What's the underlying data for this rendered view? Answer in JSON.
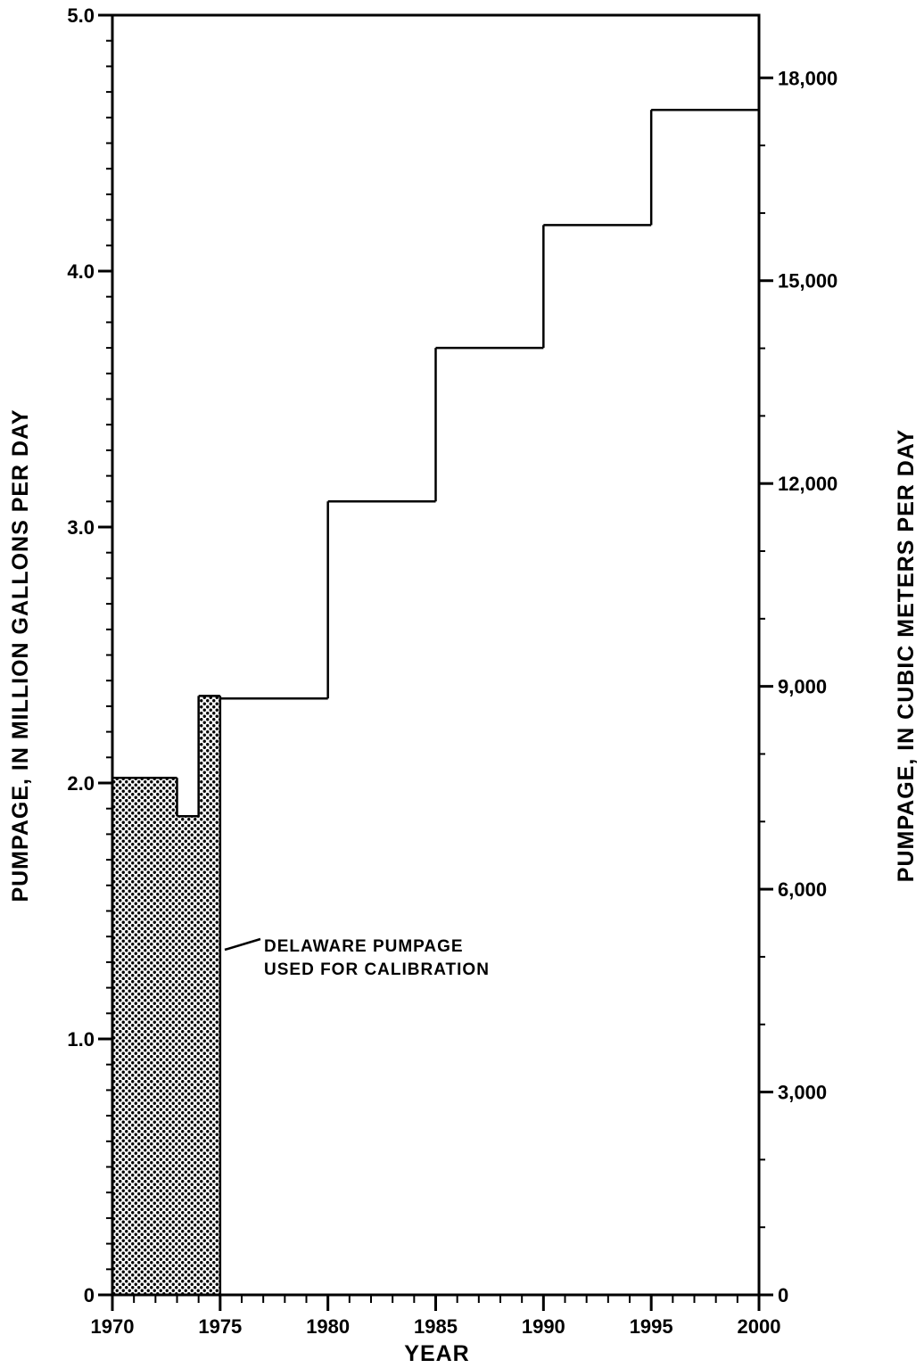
{
  "chart_data": {
    "type": "line",
    "step": true,
    "xlabel": "YEAR",
    "ylabel": "PUMPAGE, IN MILLION GALLONS PER DAY",
    "ylabel_right": "PUMPAGE, IN CUBIC METERS PER DAY",
    "xlim": [
      1970,
      2000
    ],
    "ylim": [
      0,
      5.0
    ],
    "ylim_right": [
      0,
      18927
    ],
    "x_ticks": [
      "1970",
      "1975",
      "1980",
      "1985",
      "1990",
      "1995",
      "2000"
    ],
    "y_ticks": [
      "0",
      "1.0",
      "2.0",
      "3.0",
      "4.0",
      "5.0"
    ],
    "y_right_ticks": [
      "0",
      "3,000",
      "6,000",
      "9,000",
      "12,000",
      "15,000",
      "18,000"
    ],
    "series": [
      {
        "segments": [
          {
            "x0": 1970,
            "x1": 1973,
            "y": 2.02
          },
          {
            "x0": 1973,
            "x1": 1974,
            "y": 1.87
          },
          {
            "x0": 1974,
            "x1": 1975,
            "y": 2.34
          },
          {
            "x0": 1975,
            "x1": 1980,
            "y": 2.33
          },
          {
            "x0": 1980,
            "x1": 1985,
            "y": 3.1
          },
          {
            "x0": 1985,
            "x1": 1990,
            "y": 3.7
          },
          {
            "x0": 1990,
            "x1": 1995,
            "y": 4.18
          },
          {
            "x0": 1995,
            "x1": 2000,
            "y": 4.63
          }
        ],
        "shaded_until": 1975
      }
    ],
    "annotation": {
      "line1": "DELAWARE PUMPAGE",
      "line2": "USED FOR CALIBRATION"
    }
  }
}
